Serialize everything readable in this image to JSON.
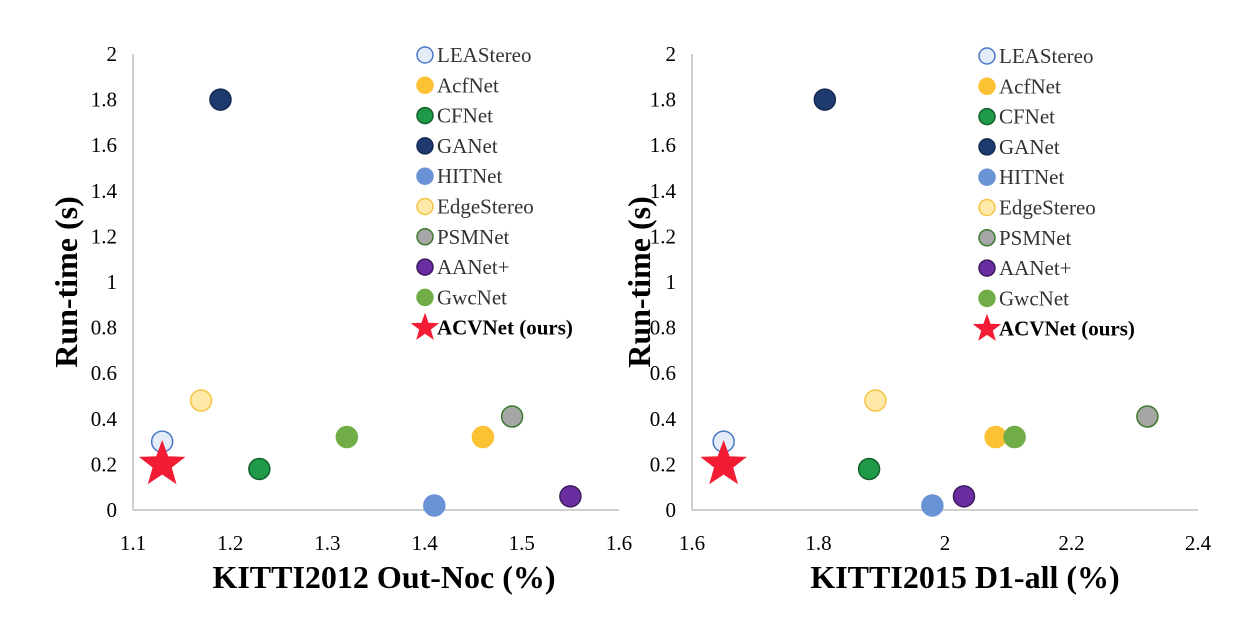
{
  "colors": {
    "LEAStereo": {
      "fill": "#e3ecf8",
      "stroke": "#4a78c4"
    },
    "AcfNet": {
      "fill": "#fcc233",
      "stroke": "#fcc233"
    },
    "CFNet": {
      "fill": "#1e9a48",
      "stroke": "#14612e"
    },
    "GANet": {
      "fill": "#1e3a6e",
      "stroke": "#142a52"
    },
    "HITNet": {
      "fill": "#6a93d6",
      "stroke": "#6a93d6"
    },
    "EdgeStereo": {
      "fill": "#fee9a8",
      "stroke": "#f6c343"
    },
    "PSMNet": {
      "fill": "#a6a6a6",
      "stroke": "#3d7a2c"
    },
    "AANet+": {
      "fill": "#6a2ea0",
      "stroke": "#3b1a5c"
    },
    "GwcNet": {
      "fill": "#70ad47",
      "stroke": "#70ad47"
    },
    "ACVNet (ours)": {
      "fill": "#f21d34",
      "stroke": "#f21d34"
    }
  },
  "chart_data": [
    {
      "type": "scatter",
      "title": "",
      "xlabel": "KITTI2012 Out-Noc (%)",
      "ylabel": "Run-time (s)",
      "xlim": [
        1.1,
        1.6
      ],
      "ylim": [
        0,
        2
      ],
      "x_ticks": [
        "1.1",
        "1.2",
        "1.3",
        "1.4",
        "1.5",
        "1.6"
      ],
      "y_ticks": [
        "0",
        "0.2",
        "0.4",
        "0.6",
        "0.8",
        "1",
        "1.2",
        "1.4",
        "1.6",
        "1.8",
        "2"
      ],
      "legend_position": "top-right",
      "series": [
        {
          "name": "LEAStereo",
          "marker": "circle",
          "x": 1.13,
          "y": 0.3
        },
        {
          "name": "AcfNet",
          "marker": "circle",
          "x": 1.46,
          "y": 0.32
        },
        {
          "name": "CFNet",
          "marker": "circle",
          "x": 1.23,
          "y": 0.18
        },
        {
          "name": "GANet",
          "marker": "circle",
          "x": 1.19,
          "y": 1.8
        },
        {
          "name": "HITNet",
          "marker": "circle",
          "x": 1.41,
          "y": 0.02
        },
        {
          "name": "EdgeStereo",
          "marker": "circle",
          "x": 1.17,
          "y": 0.48
        },
        {
          "name": "PSMNet",
          "marker": "circle",
          "x": 1.49,
          "y": 0.41
        },
        {
          "name": "AANet+",
          "marker": "circle",
          "x": 1.55,
          "y": 0.06
        },
        {
          "name": "GwcNet",
          "marker": "circle",
          "x": 1.32,
          "y": 0.32
        },
        {
          "name": "ACVNet (ours)",
          "marker": "star",
          "bold": true,
          "x": 1.13,
          "y": 0.2
        }
      ]
    },
    {
      "type": "scatter",
      "title": "",
      "xlabel": "KITTI2015 D1-all (%)",
      "ylabel": "Run-time (s)",
      "xlim": [
        1.6,
        2.4
      ],
      "ylim": [
        0,
        2
      ],
      "x_ticks": [
        "1.6",
        "1.8",
        "2",
        "2.2",
        "2.4"
      ],
      "y_ticks": [
        "0",
        "0.2",
        "0.4",
        "0.6",
        "0.8",
        "1",
        "1.2",
        "1.4",
        "1.6",
        "1.8",
        "2"
      ],
      "legend_position": "top-right",
      "series": [
        {
          "name": "LEAStereo",
          "marker": "circle",
          "x": 1.65,
          "y": 0.3
        },
        {
          "name": "AcfNet",
          "marker": "circle",
          "x": 2.08,
          "y": 0.32
        },
        {
          "name": "CFNet",
          "marker": "circle",
          "x": 1.88,
          "y": 0.18
        },
        {
          "name": "GANet",
          "marker": "circle",
          "x": 1.81,
          "y": 1.8
        },
        {
          "name": "HITNet",
          "marker": "circle",
          "x": 1.98,
          "y": 0.02
        },
        {
          "name": "EdgeStereo",
          "marker": "circle",
          "x": 1.89,
          "y": 0.48
        },
        {
          "name": "PSMNet",
          "marker": "circle",
          "x": 2.32,
          "y": 0.41
        },
        {
          "name": "AANet+",
          "marker": "circle",
          "x": 2.03,
          "y": 0.06
        },
        {
          "name": "GwcNet",
          "marker": "circle",
          "x": 2.11,
          "y": 0.32
        },
        {
          "name": "ACVNet (ours)",
          "marker": "star",
          "bold": true,
          "x": 1.65,
          "y": 0.2
        }
      ]
    }
  ]
}
